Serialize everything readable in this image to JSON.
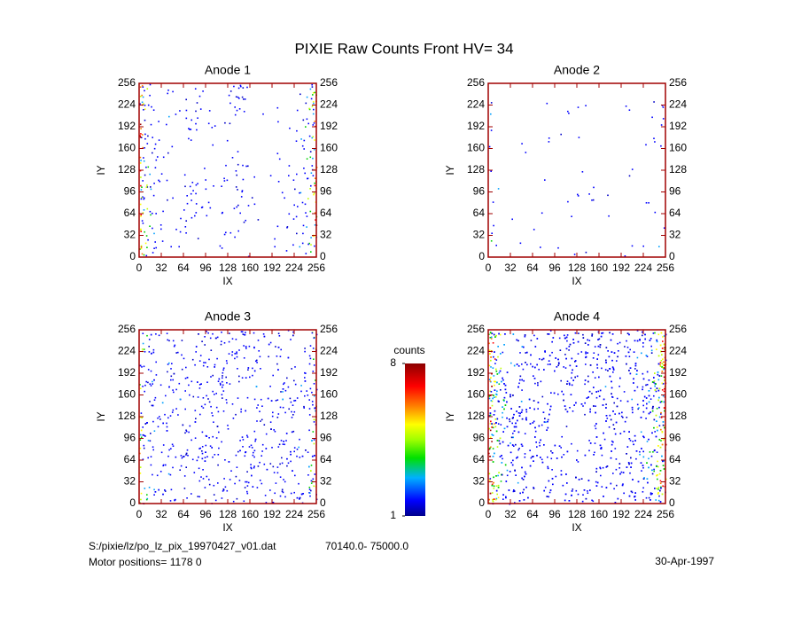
{
  "title": "PIXIE Raw Counts Front HV= 34",
  "chart_data": [
    {
      "type": "heatmap",
      "title": "Anode 1",
      "x_label": "IX",
      "y_label": "IY",
      "xlim": [
        0,
        256
      ],
      "ylim": [
        0,
        256
      ],
      "xticks": [
        0,
        32,
        64,
        96,
        128,
        160,
        192,
        224,
        256
      ],
      "yticks": [
        0,
        32,
        64,
        96,
        128,
        160,
        192,
        224,
        256
      ]
    },
    {
      "type": "heatmap",
      "title": "Anode 2",
      "x_label": "IX",
      "y_label": "IY",
      "xlim": [
        0,
        256
      ],
      "ylim": [
        0,
        256
      ],
      "xticks": [
        0,
        32,
        64,
        96,
        128,
        160,
        192,
        224,
        256
      ],
      "yticks": [
        0,
        32,
        64,
        96,
        128,
        160,
        192,
        224,
        256
      ]
    },
    {
      "type": "heatmap",
      "title": "Anode 3",
      "x_label": "IX",
      "y_label": "IY",
      "xlim": [
        0,
        256
      ],
      "ylim": [
        0,
        256
      ],
      "xticks": [
        0,
        32,
        64,
        96,
        128,
        160,
        192,
        224,
        256
      ],
      "yticks": [
        0,
        32,
        64,
        96,
        128,
        160,
        192,
        224,
        256
      ]
    },
    {
      "type": "heatmap",
      "title": "Anode 4",
      "x_label": "IX",
      "y_label": "IY",
      "xlim": [
        0,
        256
      ],
      "ylim": [
        0,
        256
      ],
      "xticks": [
        0,
        32,
        64,
        96,
        128,
        160,
        192,
        224,
        256
      ],
      "yticks": [
        0,
        32,
        64,
        96,
        128,
        160,
        192,
        224,
        256
      ]
    }
  ],
  "colorbar": {
    "label": "counts",
    "lim": [
      1,
      8
    ],
    "ticks": [
      1,
      8
    ]
  },
  "footer": {
    "file": "S:/pixie/lz/po_lz_pix_19970427_v01.dat",
    "range": "70140.0- 75000.0",
    "motor": "Motor positions= 1178 0",
    "date": "30-Apr-1997"
  }
}
